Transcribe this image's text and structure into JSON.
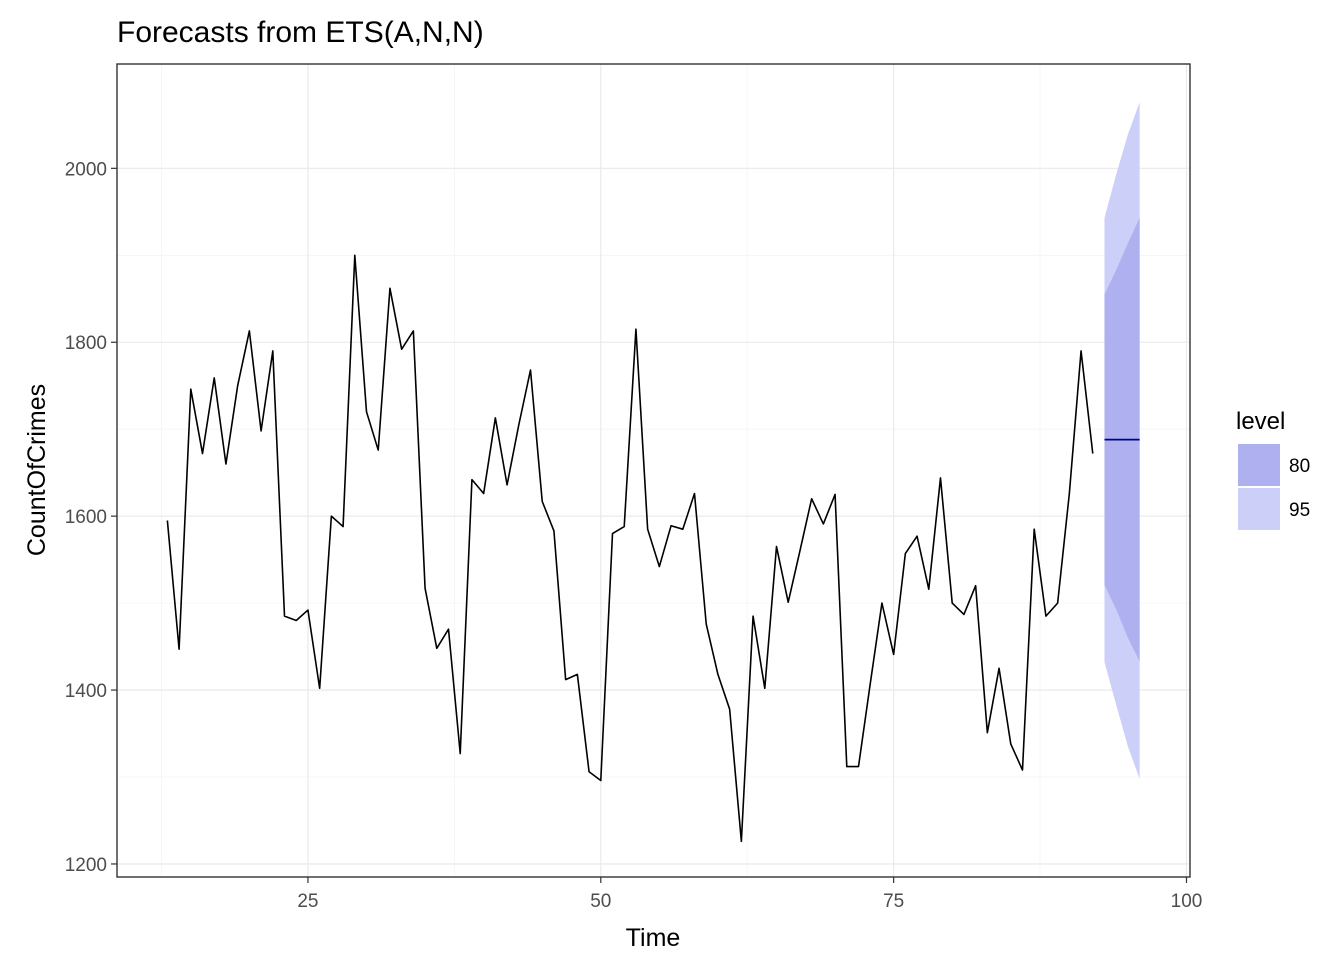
{
  "chart_data": {
    "type": "line",
    "title": "Forecasts from ETS(A,N,N)",
    "xlabel": "Time",
    "ylabel": "CountOfCrimes",
    "xlim": [
      8.7,
      100.3
    ],
    "ylim": [
      1185,
      2120
    ],
    "x_ticks": [
      25,
      50,
      75,
      100
    ],
    "y_ticks": [
      1200,
      1400,
      1600,
      1800,
      2000
    ],
    "x_minor": [
      12.5,
      37.5,
      62.5,
      87.5
    ],
    "y_minor": [
      1300,
      1500,
      1700,
      1900
    ],
    "grid": true,
    "legend": {
      "title": "level",
      "position": "right",
      "items": [
        {
          "label": "80",
          "color": "#aeb0ef"
        },
        {
          "label": "95",
          "color": "#cccff8"
        }
      ]
    },
    "series": [
      {
        "type": "line",
        "color": "#000000",
        "x_start": 13,
        "values": [
          1595,
          1447,
          1746,
          1672,
          1759,
          1660,
          1750,
          1813,
          1698,
          1790,
          1485,
          1480,
          1492,
          1402,
          1600,
          1588,
          1900,
          1720,
          1676,
          1862,
          1792,
          1813,
          1517,
          1448,
          1470,
          1327,
          1642,
          1626,
          1713,
          1636,
          1705,
          1768,
          1617,
          1583,
          1412,
          1418,
          1306,
          1296,
          1580,
          1588,
          1815,
          1585,
          1542,
          1589,
          1585,
          1626,
          1476,
          1418,
          1378,
          1226,
          1485,
          1402,
          1565,
          1501,
          1560,
          1620,
          1591,
          1625,
          1312,
          1312,
          1407,
          1500,
          1441,
          1557,
          1577,
          1516,
          1644,
          1500,
          1487,
          1520,
          1351,
          1425,
          1338,
          1308,
          1585,
          1485,
          1500,
          1626,
          1790,
          1672
        ]
      },
      {
        "type": "forecast",
        "color": "#00008b",
        "x": [
          93,
          94,
          95,
          96
        ],
        "mean": [
          1688,
          1688,
          1688,
          1688
        ],
        "lo80": [
          1521,
          1493,
          1460,
          1433
        ],
        "hi80": [
          1855,
          1883,
          1914,
          1943
        ],
        "lo95": [
          1432,
          1383,
          1335,
          1298
        ],
        "hi95": [
          1943,
          1993,
          2039,
          2076
        ]
      }
    ]
  }
}
